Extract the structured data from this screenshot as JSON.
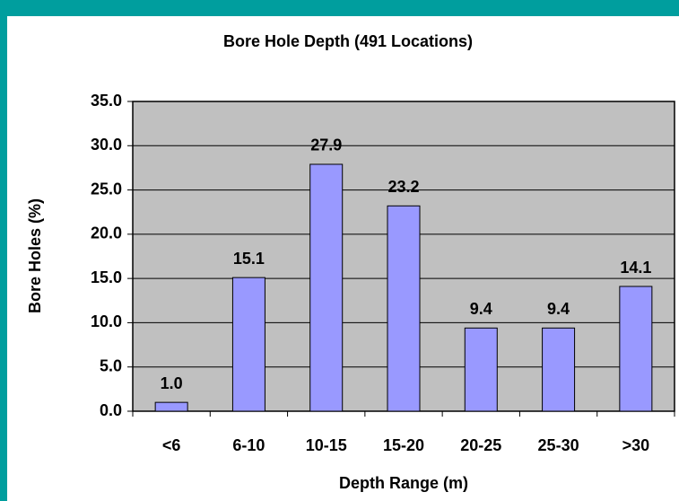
{
  "chart_data": {
    "type": "bar",
    "title": "Bore Hole Depth  (491 Locations)",
    "x_label": "Depth Range (m)",
    "y_label": "Bore Holes (%)",
    "categories": [
      "<6",
      "6-10",
      "10-15",
      "15-20",
      "20-25",
      "25-30",
      ">30"
    ],
    "values": [
      1.0,
      15.1,
      27.9,
      23.2,
      9.4,
      9.4,
      14.1
    ],
    "value_labels": [
      "1.0",
      "15.1",
      "27.9",
      "23.2",
      "9.4",
      "9.4",
      "14.1"
    ],
    "color": "#9999ff",
    "ylim": [
      0,
      35
    ],
    "yticks": [
      {
        "value": 0,
        "label": "0.0"
      },
      {
        "value": 5,
        "label": "5.0"
      },
      {
        "value": 10,
        "label": "10.0"
      },
      {
        "value": 15,
        "label": "15.0"
      },
      {
        "value": 20,
        "label": "20.0"
      },
      {
        "value": 25,
        "label": "25.0"
      },
      {
        "value": 30,
        "label": "30.0"
      },
      {
        "value": 35,
        "label": "35.0"
      }
    ],
    "grid": true
  }
}
